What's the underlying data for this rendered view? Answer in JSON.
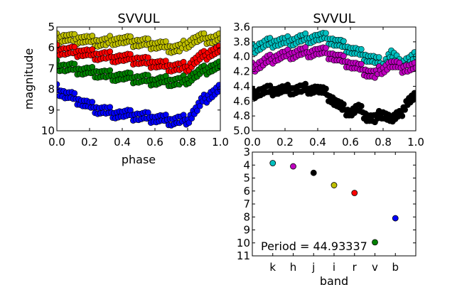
{
  "chart_data": [
    {
      "id": "phase_left",
      "type": "scatter",
      "title": "SVVUL",
      "xlabel": "phase",
      "ylabel": "magnitude",
      "xlim": [
        0.0,
        1.0
      ],
      "ylim": [
        10,
        5
      ],
      "y_inverted": true,
      "xticks": [
        "0.0",
        "0.2",
        "0.4",
        "0.6",
        "0.8",
        "1.0"
      ],
      "yticks": [
        "5",
        "6",
        "7",
        "8",
        "9",
        "10"
      ],
      "grid": false,
      "marker_shape": "circle",
      "series": [
        {
          "band": "i",
          "color": "#bfbf00",
          "x": [
            0.0,
            0.05,
            0.1,
            0.15,
            0.2,
            0.25,
            0.3,
            0.35,
            0.4,
            0.45,
            0.5,
            0.55,
            0.6,
            0.65,
            0.7,
            0.75,
            0.8,
            0.85,
            0.9,
            0.95,
            1.0
          ],
          "y": [
            5.55,
            5.5,
            5.6,
            5.55,
            5.65,
            5.7,
            5.75,
            5.6,
            5.65,
            5.7,
            5.75,
            5.8,
            5.85,
            5.9,
            6.0,
            6.05,
            5.75,
            5.6,
            5.55,
            5.6,
            5.55
          ]
        },
        {
          "band": "r",
          "color": "#ff0000",
          "x": [
            0.0,
            0.05,
            0.1,
            0.15,
            0.2,
            0.25,
            0.3,
            0.35,
            0.4,
            0.45,
            0.5,
            0.55,
            0.6,
            0.65,
            0.7,
            0.75,
            0.8,
            0.85,
            0.9,
            0.95,
            1.0
          ],
          "y": [
            6.1,
            6.15,
            6.2,
            6.2,
            6.3,
            6.35,
            6.4,
            6.45,
            6.5,
            6.55,
            6.6,
            6.7,
            6.75,
            6.85,
            6.9,
            6.95,
            6.9,
            6.6,
            6.4,
            6.2,
            6.15
          ]
        },
        {
          "band": "v",
          "color": "#008000",
          "x": [
            0.0,
            0.05,
            0.1,
            0.15,
            0.2,
            0.25,
            0.3,
            0.35,
            0.4,
            0.45,
            0.5,
            0.55,
            0.6,
            0.65,
            0.7,
            0.75,
            0.8,
            0.85,
            0.9,
            0.95,
            1.0
          ],
          "y": [
            6.85,
            6.95,
            7.0,
            7.1,
            7.15,
            7.2,
            7.3,
            7.35,
            7.4,
            7.45,
            7.5,
            7.55,
            7.6,
            7.6,
            7.6,
            7.65,
            7.5,
            7.3,
            7.1,
            6.95,
            6.9
          ]
        },
        {
          "band": "b",
          "color": "#0000ff",
          "x": [
            0.0,
            0.05,
            0.1,
            0.15,
            0.2,
            0.25,
            0.3,
            0.35,
            0.4,
            0.45,
            0.5,
            0.55,
            0.6,
            0.65,
            0.7,
            0.75,
            0.8,
            0.85,
            0.9,
            0.95,
            1.0
          ],
          "y": [
            8.0,
            8.25,
            8.4,
            8.6,
            8.8,
            8.95,
            9.05,
            9.15,
            9.2,
            9.25,
            9.3,
            9.35,
            9.4,
            9.45,
            9.5,
            9.5,
            9.45,
            9.0,
            8.5,
            8.2,
            8.0
          ]
        }
      ]
    },
    {
      "id": "phase_right",
      "type": "scatter",
      "title": "SVVUL",
      "xlabel": "",
      "ylabel": "",
      "xlim": [
        0.0,
        1.0
      ],
      "ylim": [
        5.0,
        3.6
      ],
      "y_inverted": true,
      "xticks": [
        "0.0",
        "0.2",
        "0.4",
        "0.6",
        "0.8",
        "1.0"
      ],
      "yticks": [
        "3.6",
        "3.8",
        "4.0",
        "4.2",
        "4.4",
        "4.6",
        "4.8",
        "5.0"
      ],
      "grid": false,
      "marker_shape": "circle",
      "series": [
        {
          "band": "k",
          "color": "#00bfbf",
          "x": [
            0.0,
            0.05,
            0.1,
            0.15,
            0.2,
            0.25,
            0.3,
            0.35,
            0.4,
            0.45,
            0.5,
            0.55,
            0.6,
            0.65,
            0.7,
            0.75,
            0.8,
            0.85,
            0.9,
            0.95,
            1.0
          ],
          "y": [
            3.9,
            3.85,
            3.82,
            3.8,
            3.8,
            3.78,
            3.76,
            3.75,
            3.74,
            3.75,
            3.8,
            3.85,
            3.9,
            3.95,
            4.0,
            4.05,
            4.1,
            3.95,
            4.1,
            4.05,
            4.0
          ]
        },
        {
          "band": "h",
          "color": "#bf00bf",
          "x": [
            0.0,
            0.05,
            0.1,
            0.15,
            0.2,
            0.25,
            0.3,
            0.35,
            0.4,
            0.45,
            0.5,
            0.55,
            0.6,
            0.65,
            0.7,
            0.75,
            0.8,
            0.85,
            0.9,
            0.95,
            1.0
          ],
          "y": [
            4.15,
            4.1,
            4.05,
            4.0,
            3.98,
            3.96,
            3.94,
            3.94,
            3.93,
            3.95,
            4.0,
            4.05,
            4.1,
            4.15,
            4.2,
            4.25,
            4.15,
            4.1,
            4.15,
            4.15,
            4.15
          ]
        },
        {
          "band": "j",
          "color": "#000000",
          "x": [
            0.0,
            0.05,
            0.1,
            0.15,
            0.2,
            0.25,
            0.3,
            0.35,
            0.4,
            0.45,
            0.5,
            0.55,
            0.6,
            0.65,
            0.7,
            0.75,
            0.8,
            0.85,
            0.9,
            0.95,
            1.0
          ],
          "y": [
            4.5,
            4.47,
            4.46,
            4.45,
            4.45,
            4.44,
            4.44,
            4.43,
            4.44,
            4.5,
            4.6,
            4.7,
            4.75,
            4.7,
            4.8,
            4.85,
            4.75,
            4.85,
            4.8,
            4.6,
            4.55
          ]
        }
      ]
    },
    {
      "id": "band_mags",
      "type": "scatter",
      "title": "",
      "xlabel": "band",
      "ylabel": "",
      "categories": [
        "k",
        "h",
        "j",
        "i",
        "r",
        "v",
        "b"
      ],
      "values": [
        3.85,
        4.1,
        4.6,
        5.55,
        6.15,
        9.95,
        8.1
      ],
      "colors": [
        "#00bfbf",
        "#bf00bf",
        "#000000",
        "#bfbf00",
        "#ff0000",
        "#008000",
        "#0000ff"
      ],
      "ylim": [
        11,
        3
      ],
      "y_inverted": true,
      "yticks": [
        "3",
        "4",
        "5",
        "6",
        "7",
        "8",
        "9",
        "10",
        "11"
      ],
      "grid": false,
      "annotation": "Period = 44.93337"
    }
  ]
}
